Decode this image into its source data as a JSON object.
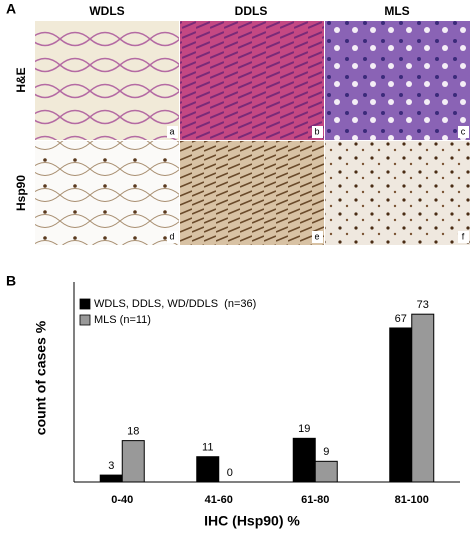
{
  "panel_a": {
    "label": "A",
    "columns": [
      "WDLS",
      "DDLS",
      "MLS"
    ],
    "rows": [
      "H&E",
      "Hsp90"
    ],
    "tiles": [
      "a",
      "b",
      "c",
      "d",
      "e",
      "f"
    ]
  },
  "chart_data": {
    "type": "bar",
    "panel_label": "B",
    "x_label": "IHC (Hsp90) %",
    "y_label": "count of cases %",
    "categories": [
      "0-40",
      "41-60",
      "61-80",
      "81-100"
    ],
    "series": [
      {
        "name": "WDLS, DDLS, WD/DDLS  (n=36)",
        "color": "#000000",
        "values": [
          3,
          11,
          19,
          67
        ]
      },
      {
        "name": "MLS (n=11)",
        "color": "#999999",
        "values": [
          18,
          0,
          9,
          73
        ]
      }
    ],
    "ylim": [
      0,
      87
    ],
    "legend": "upper left",
    "grid": false
  }
}
